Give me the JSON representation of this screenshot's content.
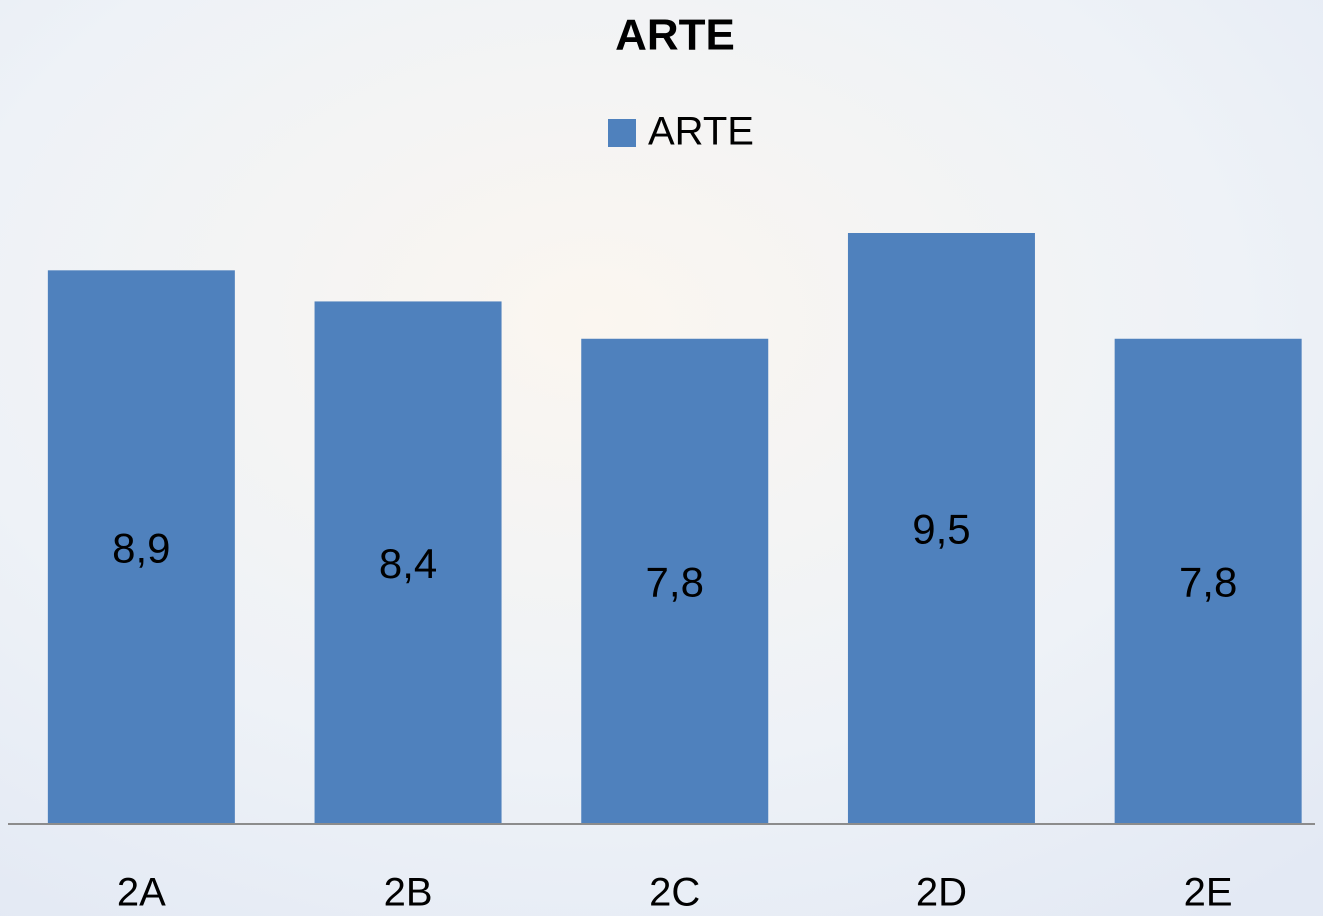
{
  "chart_data": {
    "type": "bar",
    "title": "ARTE",
    "categories": [
      "2A",
      "2B",
      "2C",
      "2D",
      "2E"
    ],
    "series": [
      {
        "name": "ARTE",
        "color": "#4f81bd",
        "values": [
          8.9,
          8.4,
          7.8,
          9.5,
          7.8
        ],
        "value_labels": [
          "8,9",
          "8,4",
          "7,8",
          "9,5",
          "7,8"
        ]
      }
    ],
    "legend": "top"
  }
}
